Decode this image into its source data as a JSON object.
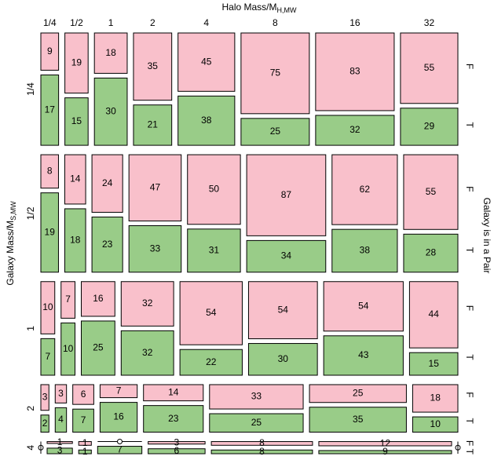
{
  "chart_data": {
    "type": "mosaic",
    "x_label": "Halo Mass/M",
    "x_label_sub": "H,MW",
    "y_label": "Galaxy Mass/M",
    "y_label_sub": "S,MW",
    "y2_label": "Galaxy is in a Pair",
    "columns": [
      "1/4",
      "1/2",
      "1",
      "2",
      "4",
      "8",
      "16",
      "32"
    ],
    "rows": [
      "1/4",
      "1/2",
      "1",
      "2",
      "4"
    ],
    "series": [
      {
        "name": "F",
        "color": "#f9c0cb",
        "values": [
          [
            9,
            19,
            18,
            35,
            45,
            75,
            83,
            55
          ],
          [
            8,
            14,
            24,
            47,
            50,
            87,
            62,
            55
          ],
          [
            10,
            7,
            16,
            32,
            54,
            54,
            54,
            44
          ],
          [
            3,
            3,
            6,
            7,
            14,
            33,
            25,
            18
          ],
          [
            0,
            1,
            1,
            0,
            3,
            8,
            12,
            0
          ]
        ]
      },
      {
        "name": "T",
        "color": "#99cc88",
        "values": [
          [
            17,
            15,
            30,
            21,
            38,
            25,
            32,
            29
          ],
          [
            19,
            18,
            23,
            33,
            31,
            34,
            38,
            28
          ],
          [
            7,
            10,
            25,
            32,
            22,
            30,
            43,
            15
          ],
          [
            2,
            4,
            7,
            16,
            23,
            25,
            35,
            10
          ],
          [
            0,
            3,
            1,
            7,
            6,
            8,
            9,
            0
          ]
        ]
      }
    ]
  }
}
